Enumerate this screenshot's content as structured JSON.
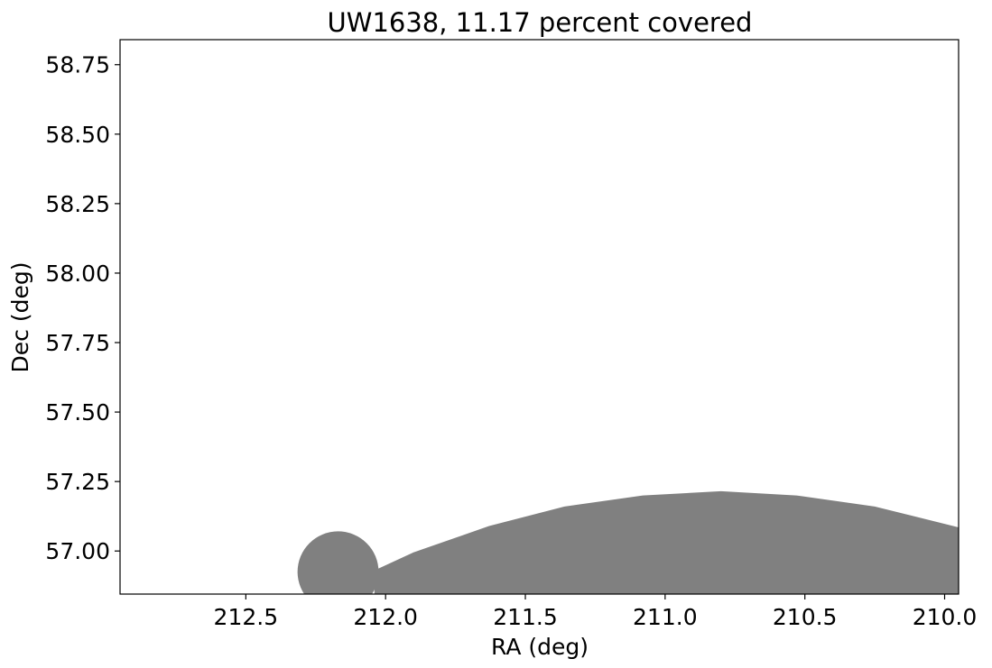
{
  "chart_data": {
    "type": "area",
    "title": "UW1638, 11.17 percent covered",
    "xlabel": "RA (deg)",
    "ylabel": "Dec (deg)",
    "x_inverted": true,
    "xlim": [
      212.95,
      209.95
    ],
    "ylim": [
      56.845,
      58.84
    ],
    "xticks": [
      212.5,
      212.0,
      211.5,
      211.0,
      210.5,
      210.0
    ],
    "xtick_labels": [
      "212.5",
      "212.0",
      "211.5",
      "211.0",
      "210.5",
      "210.0"
    ],
    "yticks": [
      57.0,
      57.25,
      57.5,
      57.75,
      58.0,
      58.25,
      58.5,
      58.75
    ],
    "ytick_labels": [
      "57.00",
      "57.25",
      "57.50",
      "57.75",
      "58.00",
      "58.25",
      "58.50",
      "58.75"
    ],
    "grid": false,
    "fill_color": "#808080",
    "circle": {
      "ra": 212.17,
      "dec": 56.925,
      "radius_ra": 0.145
    },
    "region_boundary": [
      {
        "ra": 212.04,
        "dec": 56.93
      },
      {
        "ra": 211.9,
        "dec": 56.995
      },
      {
        "ra": 211.63,
        "dec": 57.09
      },
      {
        "ra": 211.36,
        "dec": 57.16
      },
      {
        "ra": 211.08,
        "dec": 57.2
      },
      {
        "ra": 210.8,
        "dec": 57.215
      },
      {
        "ra": 210.53,
        "dec": 57.2
      },
      {
        "ra": 210.25,
        "dec": 57.16
      },
      {
        "ra": 209.95,
        "dec": 57.085
      }
    ]
  }
}
